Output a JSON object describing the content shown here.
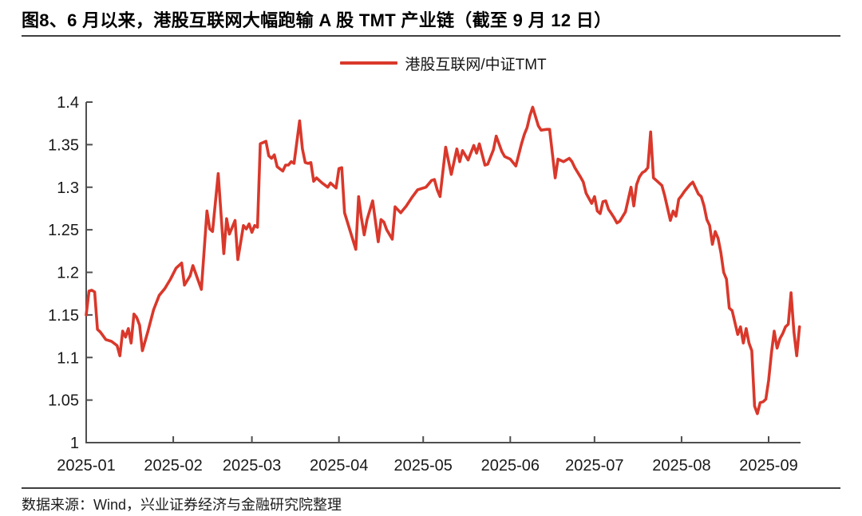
{
  "header": {
    "title": "图8、6 月以来，港股互联网大幅跑输 A 股 TMT 产业链（截至 9 月 12 日）"
  },
  "legend": {
    "label": "港股互联网/中证TMT",
    "line_color": "#d9382b"
  },
  "footer": {
    "source": "数据来源：Wind，兴业证券经济与金融研究院整理"
  },
  "colors": {
    "accent": "#d9382b",
    "axis": "#4f4f4f",
    "text": "#1a1a1a"
  },
  "chart_data": {
    "type": "line",
    "title": "",
    "xlabel": "",
    "ylabel": "",
    "grid": false,
    "legend_position": "top-center",
    "ylim": [
      1,
      1.4
    ],
    "y_ticks": [
      "1",
      "1.05",
      "1.1",
      "1.15",
      "1.2",
      "1.25",
      "1.3",
      "1.35",
      "1.4"
    ],
    "x_ticks": [
      "2025-01",
      "2025-02",
      "2025-03",
      "2025-04",
      "2025-05",
      "2025-06",
      "2025-07",
      "2025-08",
      "2025-09"
    ],
    "x_range": [
      "2025-01-01",
      "2025-09-12"
    ],
    "series": [
      {
        "name": "港股互联网/中证TMT",
        "color": "#d9382b",
        "points": [
          [
            "2025-01-01",
            1.15
          ],
          [
            "2025-01-02",
            1.178
          ],
          [
            "2025-01-03",
            1.179
          ],
          [
            "2025-01-04",
            1.177
          ],
          [
            "2025-01-05",
            1.133
          ],
          [
            "2025-01-06",
            1.13
          ],
          [
            "2025-01-08",
            1.121
          ],
          [
            "2025-01-10",
            1.119
          ],
          [
            "2025-01-12",
            1.114
          ],
          [
            "2025-01-13",
            1.102
          ],
          [
            "2025-01-14",
            1.131
          ],
          [
            "2025-01-15",
            1.124
          ],
          [
            "2025-01-16",
            1.134
          ],
          [
            "2025-01-17",
            1.117
          ],
          [
            "2025-01-18",
            1.151
          ],
          [
            "2025-01-19",
            1.147
          ],
          [
            "2025-01-20",
            1.138
          ],
          [
            "2025-01-21",
            1.108
          ],
          [
            "2025-01-23",
            1.131
          ],
          [
            "2025-01-25",
            1.156
          ],
          [
            "2025-01-27",
            1.173
          ],
          [
            "2025-01-29",
            1.181
          ],
          [
            "2025-01-31",
            1.192
          ],
          [
            "2025-02-02",
            1.205
          ],
          [
            "2025-02-04",
            1.211
          ],
          [
            "2025-02-05",
            1.185
          ],
          [
            "2025-02-07",
            1.196
          ],
          [
            "2025-02-08",
            1.208
          ],
          [
            "2025-02-11",
            1.18
          ],
          [
            "2025-02-13",
            1.272
          ],
          [
            "2025-02-14",
            1.251
          ],
          [
            "2025-02-15",
            1.248
          ],
          [
            "2025-02-17",
            1.316
          ],
          [
            "2025-02-19",
            1.222
          ],
          [
            "2025-02-20",
            1.263
          ],
          [
            "2025-02-21",
            1.245
          ],
          [
            "2025-02-23",
            1.261
          ],
          [
            "2025-02-24",
            1.215
          ],
          [
            "2025-02-26",
            1.255
          ],
          [
            "2025-02-27",
            1.251
          ],
          [
            "2025-02-28",
            1.257
          ],
          [
            "2025-03-01",
            1.247
          ],
          [
            "2025-03-02",
            1.255
          ],
          [
            "2025-03-03",
            1.253
          ],
          [
            "2025-03-04",
            1.351
          ],
          [
            "2025-03-06",
            1.354
          ],
          [
            "2025-03-07",
            1.337
          ],
          [
            "2025-03-08",
            1.334
          ],
          [
            "2025-03-09",
            1.338
          ],
          [
            "2025-03-10",
            1.324
          ],
          [
            "2025-03-12",
            1.319
          ],
          [
            "2025-03-13",
            1.326
          ],
          [
            "2025-03-14",
            1.326
          ],
          [
            "2025-03-15",
            1.33
          ],
          [
            "2025-03-16",
            1.328
          ],
          [
            "2025-03-18",
            1.378
          ],
          [
            "2025-03-19",
            1.345
          ],
          [
            "2025-03-20",
            1.329
          ],
          [
            "2025-03-21",
            1.328
          ],
          [
            "2025-03-22",
            1.329
          ],
          [
            "2025-03-23",
            1.307
          ],
          [
            "2025-03-24",
            1.311
          ],
          [
            "2025-03-26",
            1.305
          ],
          [
            "2025-03-28",
            1.3
          ],
          [
            "2025-03-29",
            1.305
          ],
          [
            "2025-03-31",
            1.299
          ],
          [
            "2025-04-01",
            1.322
          ],
          [
            "2025-04-02",
            1.323
          ],
          [
            "2025-04-03",
            1.27
          ],
          [
            "2025-04-07",
            1.227
          ],
          [
            "2025-04-08",
            1.289
          ],
          [
            "2025-04-09",
            1.264
          ],
          [
            "2025-04-10",
            1.244
          ],
          [
            "2025-04-11",
            1.262
          ],
          [
            "2025-04-13",
            1.284
          ],
          [
            "2025-04-15",
            1.236
          ],
          [
            "2025-04-16",
            1.262
          ],
          [
            "2025-04-17",
            1.259
          ],
          [
            "2025-04-18",
            1.25
          ],
          [
            "2025-04-20",
            1.239
          ],
          [
            "2025-04-21",
            1.277
          ],
          [
            "2025-04-23",
            1.27
          ],
          [
            "2025-04-25",
            1.278
          ],
          [
            "2025-04-27",
            1.288
          ],
          [
            "2025-04-29",
            1.297
          ],
          [
            "2025-05-02",
            1.3
          ],
          [
            "2025-05-04",
            1.308
          ],
          [
            "2025-05-05",
            1.309
          ],
          [
            "2025-05-06",
            1.297
          ],
          [
            "2025-05-07",
            1.289
          ],
          [
            "2025-05-09",
            1.347
          ],
          [
            "2025-05-11",
            1.315
          ],
          [
            "2025-05-13",
            1.345
          ],
          [
            "2025-05-14",
            1.33
          ],
          [
            "2025-05-15",
            1.343
          ],
          [
            "2025-05-17",
            1.332
          ],
          [
            "2025-05-19",
            1.349
          ],
          [
            "2025-05-20",
            1.34
          ],
          [
            "2025-05-21",
            1.351
          ],
          [
            "2025-05-23",
            1.326
          ],
          [
            "2025-05-24",
            1.327
          ],
          [
            "2025-05-26",
            1.344
          ],
          [
            "2025-05-27",
            1.36
          ],
          [
            "2025-05-29",
            1.342
          ],
          [
            "2025-05-30",
            1.336
          ],
          [
            "2025-06-01",
            1.333
          ],
          [
            "2025-06-03",
            1.325
          ],
          [
            "2025-06-05",
            1.351
          ],
          [
            "2025-06-06",
            1.362
          ],
          [
            "2025-06-07",
            1.37
          ],
          [
            "2025-06-08",
            1.384
          ],
          [
            "2025-06-09",
            1.394
          ],
          [
            "2025-06-11",
            1.372
          ],
          [
            "2025-06-12",
            1.367
          ],
          [
            "2025-06-14",
            1.368
          ],
          [
            "2025-06-15",
            1.368
          ],
          [
            "2025-06-17",
            1.311
          ],
          [
            "2025-06-18",
            1.333
          ],
          [
            "2025-06-20",
            1.33
          ],
          [
            "2025-06-22",
            1.334
          ],
          [
            "2025-06-23",
            1.33
          ],
          [
            "2025-06-24",
            1.323
          ],
          [
            "2025-06-26",
            1.312
          ],
          [
            "2025-06-27",
            1.306
          ],
          [
            "2025-06-28",
            1.293
          ],
          [
            "2025-06-30",
            1.281
          ],
          [
            "2025-07-01",
            1.289
          ],
          [
            "2025-07-02",
            1.272
          ],
          [
            "2025-07-03",
            1.269
          ],
          [
            "2025-07-04",
            1.283
          ],
          [
            "2025-07-05",
            1.284
          ],
          [
            "2025-07-06",
            1.274
          ],
          [
            "2025-07-07",
            1.269
          ],
          [
            "2025-07-08",
            1.264
          ],
          [
            "2025-07-09",
            1.258
          ],
          [
            "2025-07-10",
            1.26
          ],
          [
            "2025-07-12",
            1.271
          ],
          [
            "2025-07-14",
            1.3
          ],
          [
            "2025-07-15",
            1.278
          ],
          [
            "2025-07-16",
            1.303
          ],
          [
            "2025-07-17",
            1.312
          ],
          [
            "2025-07-18",
            1.317
          ],
          [
            "2025-07-19",
            1.319
          ],
          [
            "2025-07-20",
            1.323
          ],
          [
            "2025-07-21",
            1.365
          ],
          [
            "2025-07-22",
            1.311
          ],
          [
            "2025-07-23",
            1.308
          ],
          [
            "2025-07-25",
            1.302
          ],
          [
            "2025-07-26",
            1.29
          ],
          [
            "2025-07-28",
            1.261
          ],
          [
            "2025-07-29",
            1.272
          ],
          [
            "2025-07-30",
            1.266
          ],
          [
            "2025-07-31",
            1.286
          ],
          [
            "2025-08-01",
            1.29
          ],
          [
            "2025-08-02",
            1.295
          ],
          [
            "2025-08-04",
            1.303
          ],
          [
            "2025-08-05",
            1.306
          ],
          [
            "2025-08-07",
            1.292
          ],
          [
            "2025-08-08",
            1.289
          ],
          [
            "2025-08-09",
            1.278
          ],
          [
            "2025-08-10",
            1.262
          ],
          [
            "2025-08-11",
            1.255
          ],
          [
            "2025-08-12",
            1.233
          ],
          [
            "2025-08-13",
            1.248
          ],
          [
            "2025-08-14",
            1.24
          ],
          [
            "2025-08-15",
            1.223
          ],
          [
            "2025-08-16",
            1.2
          ],
          [
            "2025-08-17",
            1.192
          ],
          [
            "2025-08-18",
            1.158
          ],
          [
            "2025-08-19",
            1.155
          ],
          [
            "2025-08-21",
            1.127
          ],
          [
            "2025-08-22",
            1.136
          ],
          [
            "2025-08-23",
            1.117
          ],
          [
            "2025-08-24",
            1.134
          ],
          [
            "2025-08-25",
            1.117
          ],
          [
            "2025-08-26",
            1.108
          ],
          [
            "2025-08-27",
            1.043
          ],
          [
            "2025-08-28",
            1.034
          ],
          [
            "2025-08-29",
            1.047
          ],
          [
            "2025-08-30",
            1.048
          ],
          [
            "2025-08-31",
            1.051
          ],
          [
            "2025-09-01",
            1.073
          ],
          [
            "2025-09-02",
            1.105
          ],
          [
            "2025-09-03",
            1.131
          ],
          [
            "2025-09-04",
            1.111
          ],
          [
            "2025-09-05",
            1.122
          ],
          [
            "2025-09-06",
            1.128
          ],
          [
            "2025-09-07",
            1.136
          ],
          [
            "2025-09-08",
            1.139
          ],
          [
            "2025-09-09",
            1.176
          ],
          [
            "2025-09-10",
            1.13
          ],
          [
            "2025-09-11",
            1.102
          ],
          [
            "2025-09-12",
            1.136
          ]
        ]
      }
    ]
  }
}
